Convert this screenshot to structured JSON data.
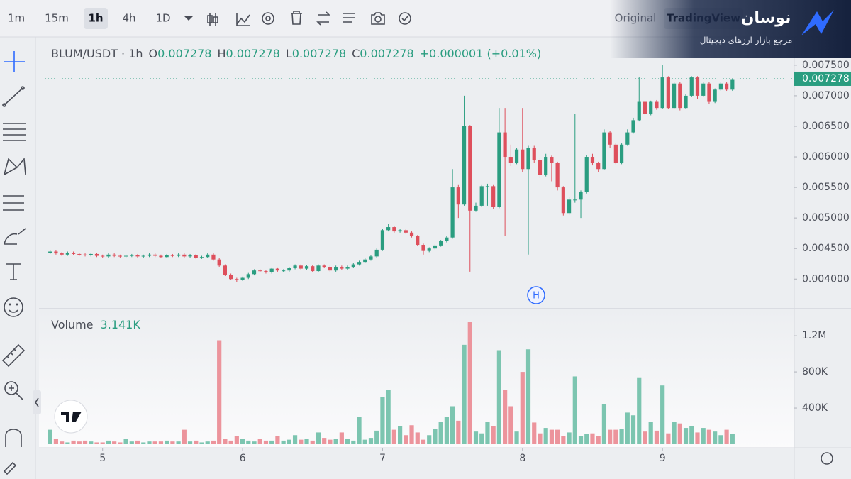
{
  "toolbar": {
    "intervals": [
      "1m",
      "15m",
      "1h",
      "4h",
      "1D"
    ],
    "scale_modes": [
      "Original",
      "TradingView"
    ]
  },
  "brand": {
    "name": "نوسان",
    "tagline": "مرجع بازار ارزهای دیجیتال"
  },
  "chart_data": [
    {
      "type": "candlestick",
      "title": "BLUM/USDT · 1h",
      "legend": [
        {
          "key": "O",
          "text": "0.007278"
        },
        {
          "key": "H",
          "text": "0.007278"
        },
        {
          "key": "L",
          "text": "0.007278"
        },
        {
          "key": "C",
          "text": "0.007278"
        }
      ],
      "change": "+0.000001 (+0.01%)",
      "marker": "H",
      "up_color": "#2a9d80",
      "down_color": "#de4f5c",
      "x": [
        -9,
        -8,
        -7,
        -6,
        -5,
        -4,
        -3,
        -2,
        -1,
        0,
        1,
        2,
        3,
        4,
        5,
        6,
        7,
        8,
        9,
        10,
        11,
        12,
        13,
        14,
        15,
        16,
        17,
        18,
        19,
        20,
        21,
        22,
        23,
        24,
        25,
        26,
        27,
        28,
        29,
        30,
        31,
        32,
        33,
        34,
        35,
        36,
        37,
        38,
        39,
        40,
        41,
        42,
        43,
        44,
        45,
        46,
        47,
        48,
        49,
        50,
        51,
        52,
        53,
        54,
        55,
        56,
        57,
        58,
        59,
        60,
        61,
        62,
        63,
        64,
        65,
        66,
        67,
        68,
        69,
        70,
        71,
        72,
        73,
        74,
        75,
        76,
        77,
        78,
        79,
        80,
        81,
        82,
        83,
        84,
        85,
        86,
        87,
        88,
        89,
        90,
        91,
        92,
        93,
        94,
        95,
        96,
        97,
        98,
        99,
        100,
        101,
        102,
        103,
        104,
        105,
        106,
        107,
        108,
        109
      ],
      "open": [
        0.00443,
        0.00445,
        0.00442,
        0.0044,
        0.00443,
        0.00441,
        0.0044,
        0.00439,
        0.00441,
        0.00438,
        0.00437,
        0.0044,
        0.00438,
        0.00437,
        0.00438,
        0.00439,
        0.00437,
        0.00438,
        0.0044,
        0.00438,
        0.00436,
        0.00439,
        0.00438,
        0.0044,
        0.00437,
        0.00439,
        0.00435,
        0.00436,
        0.0044,
        0.00432,
        0.00422,
        0.00407,
        0.004,
        0.00399,
        0.00402,
        0.00408,
        0.00414,
        0.00413,
        0.00411,
        0.00417,
        0.00414,
        0.00414,
        0.00418,
        0.00422,
        0.00417,
        0.00421,
        0.00413,
        0.00422,
        0.0042,
        0.00414,
        0.0042,
        0.00417,
        0.0042,
        0.00424,
        0.00428,
        0.00432,
        0.00437,
        0.00448,
        0.0048,
        0.00485,
        0.00478,
        0.0048,
        0.00476,
        0.0047,
        0.00456,
        0.00446,
        0.0045,
        0.00455,
        0.00462,
        0.00468,
        0.0055,
        0.00522,
        0.0065,
        0.00512,
        0.0052,
        0.00552,
        0.00552,
        0.00518,
        0.0064,
        0.006,
        0.0059,
        0.00612,
        0.0058,
        0.00615,
        0.00595,
        0.0057,
        0.006,
        0.0059,
        0.0055,
        0.00508,
        0.0053,
        0.0053,
        0.00542,
        0.006,
        0.0059,
        0.0058,
        0.0064,
        0.0062,
        0.0059,
        0.0062,
        0.0064,
        0.0066,
        0.0069,
        0.0067,
        0.0069,
        0.0068,
        0.0073,
        0.0068,
        0.0072,
        0.0068,
        0.007,
        0.0073,
        0.007,
        0.0072,
        0.0069,
        0.0071,
        0.0072,
        0.0071,
        0.007278
      ],
      "high": [
        0.00447,
        0.00447,
        0.00444,
        0.00445,
        0.00445,
        0.00443,
        0.00442,
        0.00443,
        0.00443,
        0.0044,
        0.00442,
        0.00442,
        0.0044,
        0.0044,
        0.00441,
        0.00441,
        0.0044,
        0.00442,
        0.00442,
        0.0044,
        0.00441,
        0.00441,
        0.00442,
        0.00442,
        0.00441,
        0.00441,
        0.00438,
        0.00442,
        0.00442,
        0.00434,
        0.00424,
        0.00409,
        0.00402,
        0.00404,
        0.0041,
        0.00416,
        0.00416,
        0.00415,
        0.00419,
        0.00419,
        0.00416,
        0.0042,
        0.00424,
        0.00424,
        0.00423,
        0.00423,
        0.00424,
        0.00424,
        0.00422,
        0.00422,
        0.00422,
        0.00422,
        0.00426,
        0.0043,
        0.00434,
        0.00439,
        0.0045,
        0.00482,
        0.0049,
        0.00487,
        0.00482,
        0.00482,
        0.00478,
        0.00472,
        0.00458,
        0.00452,
        0.00457,
        0.00464,
        0.0047,
        0.0058,
        0.00555,
        0.007,
        0.00652,
        0.00525,
        0.00555,
        0.00556,
        0.00555,
        0.0068,
        0.0068,
        0.0062,
        0.00615,
        0.0068,
        0.00618,
        0.00618,
        0.00598,
        0.00605,
        0.00602,
        0.00592,
        0.00552,
        0.00535,
        0.0067,
        0.00545,
        0.00603,
        0.00605,
        0.00592,
        0.00645,
        0.00642,
        0.00622,
        0.00622,
        0.00645,
        0.00664,
        0.0073,
        0.00692,
        0.00692,
        0.00693,
        0.0075,
        0.00732,
        0.00723,
        0.00722,
        0.00703,
        0.00732,
        0.00732,
        0.00723,
        0.00722,
        0.00712,
        0.00722,
        0.00722,
        0.00728,
        0.007278
      ],
      "low": [
        0.00441,
        0.0044,
        0.00438,
        0.00438,
        0.00439,
        0.00438,
        0.00437,
        0.00437,
        0.00436,
        0.00435,
        0.00435,
        0.00436,
        0.00435,
        0.00435,
        0.00436,
        0.00435,
        0.00435,
        0.00436,
        0.00436,
        0.00434,
        0.00434,
        0.00436,
        0.00436,
        0.00435,
        0.00435,
        0.00433,
        0.00433,
        0.00434,
        0.0043,
        0.0042,
        0.00405,
        0.00398,
        0.00395,
        0.00397,
        0.004,
        0.00406,
        0.00411,
        0.00409,
        0.00409,
        0.00412,
        0.00412,
        0.00412,
        0.00416,
        0.00415,
        0.00415,
        0.00411,
        0.00411,
        0.00418,
        0.00412,
        0.00412,
        0.00415,
        0.00415,
        0.00418,
        0.00422,
        0.00426,
        0.0043,
        0.00435,
        0.00446,
        0.00478,
        0.00476,
        0.00476,
        0.00474,
        0.00468,
        0.00454,
        0.0044,
        0.00444,
        0.00448,
        0.00453,
        0.0046,
        0.00466,
        0.005,
        0.0052,
        0.00412,
        0.0051,
        0.00518,
        0.0052,
        0.00515,
        0.00516,
        0.0047,
        0.00585,
        0.00588,
        0.00575,
        0.0044,
        0.0059,
        0.00565,
        0.00568,
        0.0056,
        0.00545,
        0.00504,
        0.00505,
        0.00525,
        0.005,
        0.0054,
        0.00586,
        0.00575,
        0.00578,
        0.00615,
        0.00588,
        0.00588,
        0.00618,
        0.00638,
        0.00658,
        0.00668,
        0.00668,
        0.00677,
        0.00678,
        0.00678,
        0.00678,
        0.00676,
        0.00678,
        0.00698,
        0.00695,
        0.00698,
        0.00686,
        0.00688,
        0.00708,
        0.00708,
        0.00708,
        0.007278
      ],
      "close": [
        0.00445,
        0.00442,
        0.0044,
        0.00443,
        0.00441,
        0.0044,
        0.00439,
        0.00441,
        0.00438,
        0.00437,
        0.0044,
        0.00438,
        0.00437,
        0.00438,
        0.00439,
        0.00437,
        0.00438,
        0.0044,
        0.00438,
        0.00436,
        0.00439,
        0.00438,
        0.0044,
        0.00437,
        0.00439,
        0.00435,
        0.00436,
        0.0044,
        0.00432,
        0.00422,
        0.00407,
        0.004,
        0.00399,
        0.00402,
        0.00408,
        0.00414,
        0.00413,
        0.00411,
        0.00417,
        0.00414,
        0.00414,
        0.00418,
        0.00422,
        0.00417,
        0.00421,
        0.00413,
        0.00422,
        0.0042,
        0.00414,
        0.0042,
        0.00417,
        0.0042,
        0.00424,
        0.00428,
        0.00432,
        0.00437,
        0.00448,
        0.0048,
        0.00485,
        0.00478,
        0.0048,
        0.00476,
        0.0047,
        0.00456,
        0.00446,
        0.0045,
        0.00455,
        0.00462,
        0.00468,
        0.0055,
        0.00522,
        0.0065,
        0.00512,
        0.0052,
        0.00552,
        0.00552,
        0.00518,
        0.0064,
        0.006,
        0.0059,
        0.00612,
        0.0058,
        0.00615,
        0.00595,
        0.0057,
        0.006,
        0.0059,
        0.0055,
        0.00508,
        0.0053,
        0.0053,
        0.00542,
        0.006,
        0.0059,
        0.0058,
        0.0064,
        0.0062,
        0.0059,
        0.0062,
        0.0064,
        0.0066,
        0.0069,
        0.0067,
        0.0069,
        0.0068,
        0.0073,
        0.0068,
        0.0072,
        0.0068,
        0.007,
        0.0073,
        0.007,
        0.0072,
        0.0069,
        0.0071,
        0.0072,
        0.0071,
        0.00726,
        0.007278
      ],
      "xlim": [
        -10.3,
        118.6
      ],
      "xticks": [
        {
          "value": 0,
          "label": "5"
        },
        {
          "value": 24,
          "label": "6"
        },
        {
          "value": 48,
          "label": "7"
        },
        {
          "value": 72,
          "label": "8"
        },
        {
          "value": 96,
          "label": "9"
        }
      ],
      "ylim": [
        0.00355,
        0.00787
      ],
      "yticks": [
        {
          "value": 0.004,
          "label": "0.004000"
        },
        {
          "value": 0.0045,
          "label": "0.004500"
        },
        {
          "value": 0.005,
          "label": "0.005000"
        },
        {
          "value": 0.0055,
          "label": "0.005500"
        },
        {
          "value": 0.006,
          "label": "0.006000"
        },
        {
          "value": 0.0065,
          "label": "0.006500"
        },
        {
          "value": 0.007,
          "label": "0.007000"
        },
        {
          "value": 0.0075,
          "label": "0.007500"
        }
      ]
    },
    {
      "type": "bar",
      "title": "Volume",
      "legend_value": "3.141K",
      "up_color": "#7cc5b0",
      "down_color": "#ec949c",
      "values": [
        160000,
        60000,
        30000,
        20000,
        40000,
        30000,
        40000,
        30000,
        20000,
        20000,
        40000,
        30000,
        20000,
        60000,
        30000,
        40000,
        20000,
        30000,
        30000,
        30000,
        40000,
        30000,
        30000,
        160000,
        30000,
        40000,
        20000,
        30000,
        40000,
        1150000,
        60000,
        40000,
        90000,
        60000,
        40000,
        30000,
        60000,
        40000,
        40000,
        90000,
        40000,
        50000,
        100000,
        50000,
        60000,
        40000,
        130000,
        70000,
        50000,
        60000,
        130000,
        60000,
        40000,
        300000,
        50000,
        70000,
        150000,
        520000,
        600000,
        160000,
        200000,
        100000,
        210000,
        130000,
        50000,
        100000,
        170000,
        250000,
        300000,
        420000,
        260000,
        1100000,
        1350000,
        140000,
        120000,
        250000,
        200000,
        1040000,
        600000,
        420000,
        140000,
        800000,
        1050000,
        240000,
        120000,
        180000,
        160000,
        160000,
        90000,
        130000,
        750000,
        90000,
        110000,
        120000,
        90000,
        440000,
        160000,
        160000,
        170000,
        350000,
        320000,
        740000,
        140000,
        250000,
        150000,
        650000,
        120000,
        250000,
        230000,
        180000,
        200000,
        130000,
        180000,
        160000,
        140000,
        100000,
        160000,
        110000,
        3141
      ],
      "ylim": [
        0,
        1460000
      ],
      "yticks": [
        {
          "value": 400000,
          "label": "400K"
        },
        {
          "value": 800000,
          "label": "800K"
        },
        {
          "value": 1200000,
          "label": "1.2M"
        }
      ]
    }
  ]
}
